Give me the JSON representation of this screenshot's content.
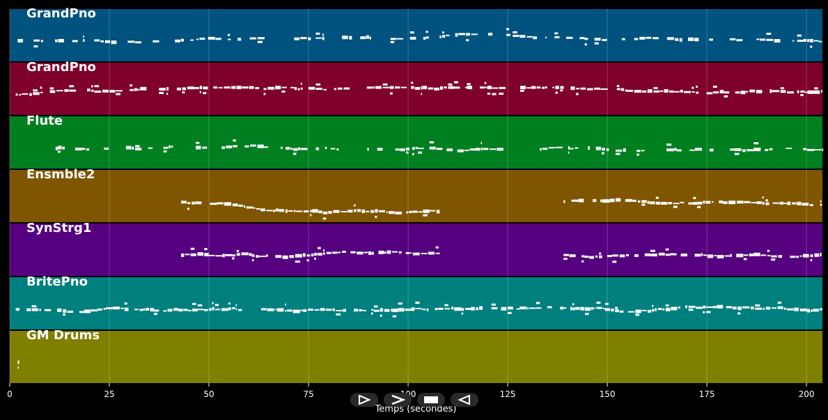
{
  "chart_data": {
    "type": "piano-roll",
    "xlabel": "Temps (secondes)",
    "xlim": [
      0,
      204
    ],
    "x_ticks": [
      0,
      25,
      50,
      75,
      100,
      125,
      150,
      175,
      200
    ],
    "grid": true,
    "tracks": [
      {
        "name": "GrandPno",
        "color": "#00527f",
        "segments": [
          [
            2,
            5
          ],
          [
            6,
            204
          ]
        ],
        "density": 0.55,
        "spread": 0.35
      },
      {
        "name": "GrandPno",
        "color": "#7f002a",
        "segments": [
          [
            1.5,
            204
          ]
        ],
        "density": 0.85,
        "spread": 0.25
      },
      {
        "name": "Flute",
        "color": "#007f20",
        "segments": [
          [
            11.5,
            204
          ]
        ],
        "density": 0.6,
        "spread": 0.18
      },
      {
        "name": "Ensmble2",
        "color": "#7f5500",
        "segments": [
          [
            43,
            108
          ],
          [
            139,
            204
          ]
        ],
        "density": 0.9,
        "spread": 0.45
      },
      {
        "name": "SynStrg1",
        "color": "#55007f",
        "segments": [
          [
            43,
            108
          ],
          [
            139,
            204
          ]
        ],
        "density": 0.9,
        "spread": 0.45
      },
      {
        "name": "BritePno",
        "color": "#007f7f",
        "segments": [
          [
            1.5,
            204
          ]
        ],
        "density": 0.85,
        "spread": 0.25
      },
      {
        "name": "GM Drums",
        "color": "#7f7f00",
        "segments": [
          [
            2,
            2.4
          ]
        ],
        "density": 1.0,
        "spread": 0.0
      }
    ]
  },
  "controls": [
    {
      "name": "play-button",
      "icon": "play-icon"
    },
    {
      "name": "forward-button",
      "icon": "forward-icon"
    },
    {
      "name": "stop-button",
      "icon": "stop-icon"
    },
    {
      "name": "rewind-button",
      "icon": "rewind-icon"
    }
  ]
}
